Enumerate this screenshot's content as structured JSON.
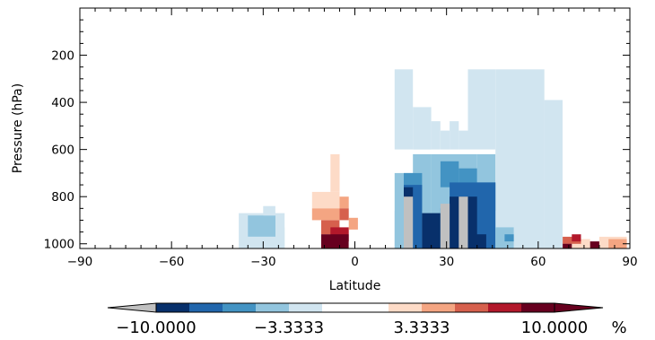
{
  "chart_data": {
    "type": "heatmap",
    "title": "",
    "xlabel": "Latitude",
    "ylabel": "Pressure (hPa)",
    "xlim": [
      -90,
      90
    ],
    "ylim": [
      1020,
      0
    ],
    "x_ticks": [
      -90,
      -60,
      -30,
      0,
      30,
      60,
      90
    ],
    "y_ticks": [
      200,
      400,
      600,
      800,
      1000
    ],
    "x_tick_labels": [
      "−90",
      "−60",
      "−30",
      "0",
      "30",
      "60",
      "90"
    ],
    "y_tick_labels": [
      "200",
      "400",
      "600",
      "800",
      "1000"
    ],
    "grid": false,
    "colorbar": {
      "orientation": "horizontal",
      "unit": "%",
      "range": [
        -10,
        10
      ],
      "tick_labels": [
        "−10.0000",
        "−3.3333",
        "3.3333",
        "10.0000"
      ],
      "levels": [
        -10,
        -8.3333,
        -6.6667,
        -5,
        -3.3333,
        -1.6667,
        0,
        1.6667,
        3.3333,
        5,
        6.6667,
        8.3333,
        10
      ],
      "colors": [
        "#08306b",
        "#2166ac",
        "#4393c3",
        "#92c5de",
        "#d1e5f0",
        "#ffffff",
        "#ffffff",
        "#fddbc7",
        "#f4a582",
        "#d6604d",
        "#b2182b",
        "#67001f"
      ],
      "under_color": "#c0c0c0",
      "over_color": "#67001f"
    },
    "cells": [
      {
        "lat": [
          -38,
          -23
        ],
        "p": [
          1020,
          870
        ],
        "value": -2
      },
      {
        "lat": [
          -35,
          -26
        ],
        "p": [
          970,
          880
        ],
        "value": -4
      },
      {
        "lat": [
          -30,
          -26
        ],
        "p": [
          880,
          840
        ],
        "value": -2
      },
      {
        "lat": [
          -26,
          -23
        ],
        "p": [
          1020,
          930
        ],
        "value": -2
      },
      {
        "lat": [
          -14,
          -5
        ],
        "p": [
          850,
          780
        ],
        "value": 2
      },
      {
        "lat": [
          -8,
          -5
        ],
        "p": [
          780,
          620
        ],
        "value": 2
      },
      {
        "lat": [
          -14,
          -5
        ],
        "p": [
          900,
          850
        ],
        "value": 4
      },
      {
        "lat": [
          -5,
          -2
        ],
        "p": [
          850,
          800
        ],
        "value": 4
      },
      {
        "lat": [
          -11,
          -5
        ],
        "p": [
          960,
          900
        ],
        "value": 6
      },
      {
        "lat": [
          -5,
          -2
        ],
        "p": [
          900,
          850
        ],
        "value": 6
      },
      {
        "lat": [
          -8,
          -2
        ],
        "p": [
          990,
          930
        ],
        "value": 8
      },
      {
        "lat": [
          -2,
          1
        ],
        "p": [
          940,
          890
        ],
        "value": 4
      },
      {
        "lat": [
          -11,
          -2
        ],
        "p": [
          1020,
          960
        ],
        "value": 9.5
      },
      {
        "lat": [
          13,
          16
        ],
        "p": [
          1020,
          860
        ],
        "value": -2
      },
      {
        "lat": [
          13,
          19
        ],
        "p": [
          600,
          260
        ],
        "value": -2
      },
      {
        "lat": [
          19,
          25
        ],
        "p": [
          600,
          420
        ],
        "value": -2
      },
      {
        "lat": [
          25,
          28
        ],
        "p": [
          600,
          480
        ],
        "value": -2
      },
      {
        "lat": [
          28,
          31
        ],
        "p": [
          600,
          520
        ],
        "value": -2
      },
      {
        "lat": [
          31,
          34
        ],
        "p": [
          600,
          480
        ],
        "value": -2
      },
      {
        "lat": [
          34,
          37
        ],
        "p": [
          600,
          520
        ],
        "value": -2
      },
      {
        "lat": [
          37,
          46
        ],
        "p": [
          600,
          260
        ],
        "value": -2
      },
      {
        "lat": [
          46,
          62
        ],
        "p": [
          1020,
          260
        ],
        "value": -2
      },
      {
        "lat": [
          62,
          68
        ],
        "p": [
          1020,
          390
        ],
        "value": -2
      },
      {
        "lat": [
          13,
          19
        ],
        "p": [
          1020,
          700
        ],
        "value": -4
      },
      {
        "lat": [
          19,
          25
        ],
        "p": [
          1020,
          620
        ],
        "value": -4
      },
      {
        "lat": [
          25,
          40
        ],
        "p": [
          1020,
          620
        ],
        "value": -4
      },
      {
        "lat": [
          40,
          46
        ],
        "p": [
          1020,
          620
        ],
        "value": -4
      },
      {
        "lat": [
          16,
          22
        ],
        "p": [
          860,
          700
        ],
        "value": -6
      },
      {
        "lat": [
          28,
          34
        ],
        "p": [
          760,
          650
        ],
        "value": -6
      },
      {
        "lat": [
          34,
          40
        ],
        "p": [
          800,
          680
        ],
        "value": -6
      },
      {
        "lat": [
          40,
          46
        ],
        "p": [
          860,
          740
        ],
        "value": -6
      },
      {
        "lat": [
          16,
          22
        ],
        "p": [
          1020,
          750
        ],
        "value": -8
      },
      {
        "lat": [
          28,
          31
        ],
        "p": [
          1020,
          850
        ],
        "value": -8
      },
      {
        "lat": [
          31,
          46
        ],
        "p": [
          1020,
          740
        ],
        "value": -8
      },
      {
        "lat": [
          37,
          43
        ],
        "p": [
          1020,
          960
        ],
        "value": -9.5
      },
      {
        "lat": [
          22,
          28
        ],
        "p": [
          1020,
          870
        ],
        "value": -9.5
      },
      {
        "lat": [
          31,
          40
        ],
        "p": [
          1020,
          800
        ],
        "value": -9.5
      },
      {
        "lat": [
          16,
          19
        ],
        "p": [
          810,
          760
        ],
        "value": -9.5
      },
      {
        "lat": [
          16,
          19
        ],
        "p": [
          1020,
          800
        ],
        "value": -11
      },
      {
        "lat": [
          28,
          31
        ],
        "p": [
          1020,
          830
        ],
        "value": -11
      },
      {
        "lat": [
          34,
          37
        ],
        "p": [
          1020,
          800
        ],
        "value": -11
      },
      {
        "lat": [
          46,
          52
        ],
        "p": [
          1020,
          930
        ],
        "value": -4
      },
      {
        "lat": [
          49,
          52
        ],
        "p": [
          990,
          960
        ],
        "value": -6
      },
      {
        "lat": [
          59,
          62
        ],
        "p": [
          1020,
          960
        ],
        "value": -2
      },
      {
        "lat": [
          71,
          77
        ],
        "p": [
          1020,
          980
        ],
        "value": 2
      },
      {
        "lat": [
          80,
          89
        ],
        "p": [
          1020,
          970
        ],
        "value": 2
      },
      {
        "lat": [
          68,
          74
        ],
        "p": [
          1000,
          970
        ],
        "value": 6
      },
      {
        "lat": [
          71,
          74
        ],
        "p": [
          990,
          960
        ],
        "value": 8
      },
      {
        "lat": [
          83,
          89
        ],
        "p": [
          1020,
          980
        ],
        "value": 4
      },
      {
        "lat": [
          68,
          71
        ],
        "p": [
          1020,
          1000
        ],
        "value": 9.5
      },
      {
        "lat": [
          77,
          80
        ],
        "p": [
          1020,
          990
        ],
        "value": 9.5
      }
    ]
  }
}
